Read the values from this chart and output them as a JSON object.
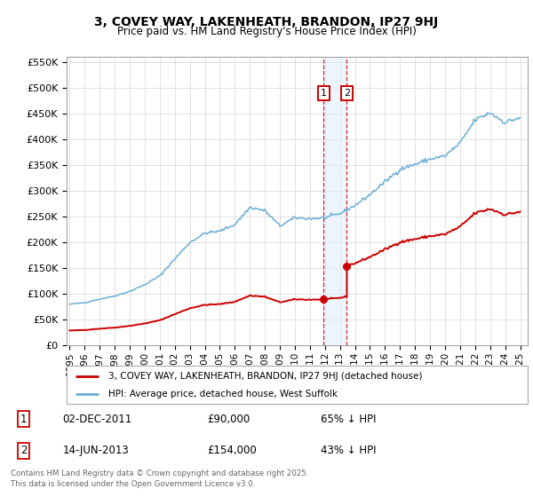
{
  "title": "3, COVEY WAY, LAKENHEATH, BRANDON, IP27 9HJ",
  "subtitle": "Price paid vs. HM Land Registry's House Price Index (HPI)",
  "legend_property": "3, COVEY WAY, LAKENHEATH, BRANDON, IP27 9HJ (detached house)",
  "legend_hpi": "HPI: Average price, detached house, West Suffolk",
  "footer": "Contains HM Land Registry data © Crown copyright and database right 2025.\nThis data is licensed under the Open Government Licence v3.0.",
  "sale1_date": "02-DEC-2011",
  "sale1_price": "£90,000",
  "sale1_hpi": "65% ↓ HPI",
  "sale1_x": 2011.92,
  "sale1_y": 90000,
  "sale2_date": "14-JUN-2013",
  "sale2_price": "£154,000",
  "sale2_hpi": "43% ↓ HPI",
  "sale2_x": 2013.46,
  "sale2_y": 154000,
  "hpi_color": "#6baed6",
  "property_color": "#cc0000",
  "shade_color": "#ddeeff",
  "marker_color": "#cc0000",
  "xlim": [
    1994.8,
    2025.5
  ],
  "ylim": [
    0,
    560000
  ],
  "yticks": [
    0,
    50000,
    100000,
    150000,
    200000,
    250000,
    300000,
    350000,
    400000,
    450000,
    500000,
    550000
  ],
  "ytick_labels": [
    "£0",
    "£50K",
    "£100K",
    "£150K",
    "£200K",
    "£250K",
    "£300K",
    "£350K",
    "£400K",
    "£450K",
    "£500K",
    "£550K"
  ],
  "xticks": [
    1995,
    1996,
    1997,
    1998,
    1999,
    2000,
    2001,
    2002,
    2003,
    2004,
    2005,
    2006,
    2007,
    2008,
    2009,
    2010,
    2011,
    2012,
    2013,
    2014,
    2015,
    2016,
    2017,
    2018,
    2019,
    2020,
    2021,
    2022,
    2023,
    2024,
    2025
  ],
  "bg_color": "#f0f4ff",
  "grid_color": "#cccccc"
}
